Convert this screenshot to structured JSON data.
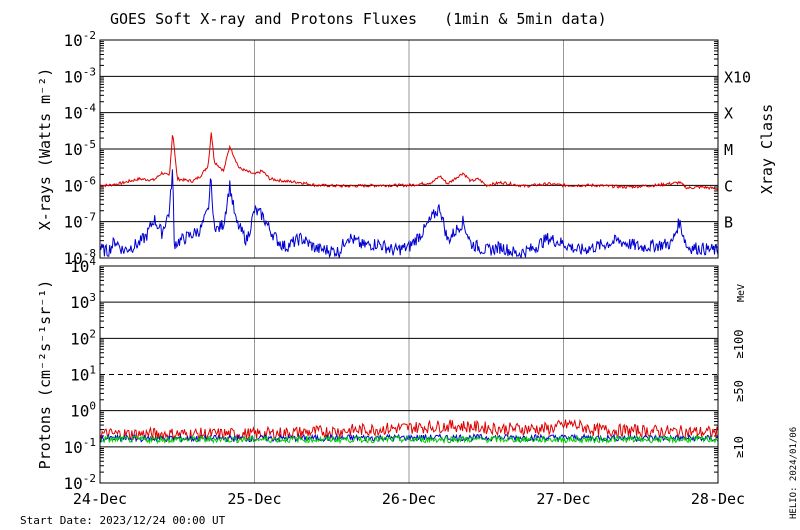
{
  "chart_data": {
    "title": "GOES Soft X-ray and Protons Fluxes   (1min & 5min data)",
    "start_date": "Start Date: 2023/12/24 00:00 UT",
    "credit": "HELIO: 2024/01/06",
    "x_ticks": [
      "24-Dec",
      "25-Dec",
      "26-Dec",
      "27-Dec",
      "28-Dec"
    ],
    "colors": {
      "xray_long": "#e00000",
      "xray_short": "#0000d0",
      "p10": "#e00000",
      "p50": "#0000d0",
      "p100": "#00d000",
      "axis": "#000000",
      "grid": "#999999"
    },
    "panels": [
      {
        "name": "xray",
        "type": "line",
        "ylabel": "X-rays (Watts m⁻²)",
        "y_scale": "log",
        "ylim": [
          1e-08,
          0.01
        ],
        "y_ticks": [
          {
            "base": "10",
            "exp": "-8"
          },
          {
            "base": "10",
            "exp": "-7"
          },
          {
            "base": "10",
            "exp": "-6"
          },
          {
            "base": "10",
            "exp": "-5"
          },
          {
            "base": "10",
            "exp": "-4"
          },
          {
            "base": "10",
            "exp": "-3"
          },
          {
            "base": "10",
            "exp": "-2"
          }
        ],
        "right_label": "Xray Class",
        "class_labels": [
          {
            "label": "B",
            "value": 1e-07
          },
          {
            "label": "C",
            "value": 1e-06
          },
          {
            "label": "M",
            "value": 1e-05
          },
          {
            "label": "X",
            "value": 0.0001
          },
          {
            "label": "X10",
            "value": 0.001
          }
        ],
        "series": [
          {
            "color": "#e00000",
            "points": [
              [
                0.0,
                1e-06
              ],
              [
                0.05,
                1e-06
              ],
              [
                0.12,
                1.1e-06
              ],
              [
                0.25,
                1.5e-06
              ],
              [
                0.35,
                1.4e-06
              ],
              [
                0.4,
                2.2e-06
              ],
              [
                0.45,
                1.8e-06
              ],
              [
                0.47,
                3e-05
              ],
              [
                0.48,
                1.2e-05
              ],
              [
                0.5,
                1.5e-06
              ],
              [
                0.6,
                1.3e-06
              ],
              [
                0.65,
                1.8e-06
              ],
              [
                0.7,
                3.5e-06
              ],
              [
                0.72,
                3e-05
              ],
              [
                0.74,
                4.5e-06
              ],
              [
                0.8,
                2.5e-06
              ],
              [
                0.84,
                1.2e-05
              ],
              [
                0.9,
                3e-06
              ],
              [
                1.0,
                2e-06
              ],
              [
                1.05,
                2.5e-06
              ],
              [
                1.1,
                1.5e-06
              ],
              [
                1.2,
                1.3e-06
              ],
              [
                1.3,
                1.2e-06
              ],
              [
                1.4,
                1e-06
              ],
              [
                1.6,
                9.5e-07
              ],
              [
                1.8,
                1e-06
              ],
              [
                2.0,
                1e-06
              ],
              [
                2.15,
                1.2e-06
              ],
              [
                2.2,
                1.8e-06
              ],
              [
                2.25,
                1.1e-06
              ],
              [
                2.35,
                2.2e-06
              ],
              [
                2.4,
                1.3e-06
              ],
              [
                2.45,
                1.5e-06
              ],
              [
                2.5,
                1e-06
              ],
              [
                2.6,
                1.2e-06
              ],
              [
                2.75,
                9.5e-07
              ],
              [
                2.9,
                1.1e-06
              ],
              [
                3.0,
                1e-06
              ],
              [
                3.2,
                1e-06
              ],
              [
                3.4,
                9e-07
              ],
              [
                3.6,
                1e-06
              ],
              [
                3.75,
                1.2e-06
              ],
              [
                3.8,
                8.5e-07
              ],
              [
                3.9,
                9e-07
              ],
              [
                4.0,
                8e-07
              ]
            ]
          },
          {
            "color": "#0000d0",
            "points": [
              [
                0.0,
                1.8e-08
              ],
              [
                0.05,
                1.5e-08
              ],
              [
                0.1,
                3e-08
              ],
              [
                0.15,
                1.6e-08
              ],
              [
                0.25,
                2.5e-08
              ],
              [
                0.3,
                4e-08
              ],
              [
                0.35,
                1.2e-07
              ],
              [
                0.4,
                5e-08
              ],
              [
                0.45,
                2e-07
              ],
              [
                0.47,
                3e-06
              ],
              [
                0.48,
                2.5e-08
              ],
              [
                0.55,
                3.5e-08
              ],
              [
                0.65,
                6e-08
              ],
              [
                0.7,
                2e-07
              ],
              [
                0.72,
                2e-06
              ],
              [
                0.73,
                1.2e-07
              ],
              [
                0.76,
                6e-08
              ],
              [
                0.8,
                9e-08
              ],
              [
                0.84,
                1e-06
              ],
              [
                0.88,
                1e-07
              ],
              [
                0.95,
                3e-08
              ],
              [
                1.0,
                2e-07
              ],
              [
                1.05,
                1.5e-07
              ],
              [
                1.1,
                6e-08
              ],
              [
                1.15,
                3e-08
              ],
              [
                1.2,
                2e-08
              ],
              [
                1.3,
                3.5e-08
              ],
              [
                1.4,
                1.8e-08
              ],
              [
                1.55,
                1.5e-08
              ],
              [
                1.6,
                4e-08
              ],
              [
                1.7,
                2.2e-08
              ],
              [
                1.8,
                2.5e-08
              ],
              [
                1.9,
                1.6e-08
              ],
              [
                2.0,
                2e-08
              ],
              [
                2.1,
                6e-08
              ],
              [
                2.15,
                1.3e-07
              ],
              [
                2.2,
                2.5e-07
              ],
              [
                2.25,
                3e-08
              ],
              [
                2.35,
                1e-07
              ],
              [
                2.4,
                2.5e-08
              ],
              [
                2.5,
                1.6e-08
              ],
              [
                2.6,
                2e-08
              ],
              [
                2.7,
                1.3e-08
              ],
              [
                2.8,
                1.8e-08
              ],
              [
                2.9,
                3.5e-08
              ],
              [
                3.0,
                2.5e-08
              ],
              [
                3.1,
                1.6e-08
              ],
              [
                3.2,
                2e-08
              ],
              [
                3.35,
                3e-08
              ],
              [
                3.5,
                2e-08
              ],
              [
                3.7,
                2.5e-08
              ],
              [
                3.75,
                1e-07
              ],
              [
                3.8,
                2e-08
              ],
              [
                3.9,
                1.8e-08
              ],
              [
                4.0,
                1.6e-08
              ]
            ]
          }
        ]
      },
      {
        "name": "protons",
        "type": "line",
        "ylabel": "Protons (cm⁻²s⁻¹sr⁻¹)",
        "y_scale": "log",
        "ylim": [
          0.01,
          10000.0
        ],
        "y_ticks": [
          {
            "base": "10",
            "exp": "-2"
          },
          {
            "base": "10",
            "exp": "-1"
          },
          {
            "base": "10",
            "exp": "0"
          },
          {
            "base": "10",
            "exp": "1"
          },
          {
            "base": "10",
            "exp": "2"
          },
          {
            "base": "10",
            "exp": "3"
          },
          {
            "base": "10",
            "exp": "4"
          }
        ],
        "dashed_level": 10,
        "energy_unit": "MeV",
        "legend": [
          {
            "label": "≥10",
            "color": "#e00000"
          },
          {
            "label": "≥50",
            "color": "#0000d0"
          },
          {
            "label": "≥100",
            "color": "#00d000"
          }
        ],
        "series": [
          {
            "color": "#e00000",
            "points": [
              [
                0.0,
                0.2
              ],
              [
                0.5,
                0.2
              ],
              [
                1.0,
                0.2
              ],
              [
                1.5,
                0.24
              ],
              [
                2.0,
                0.3
              ],
              [
                2.3,
                0.34
              ],
              [
                2.6,
                0.28
              ],
              [
                2.9,
                0.28
              ],
              [
                3.05,
                0.38
              ],
              [
                3.2,
                0.26
              ],
              [
                3.6,
                0.24
              ],
              [
                4.0,
                0.22
              ]
            ]
          },
          {
            "color": "#0000d0",
            "points": [
              [
                0.0,
                0.17
              ],
              [
                1.0,
                0.17
              ],
              [
                2.0,
                0.18
              ],
              [
                3.0,
                0.18
              ],
              [
                4.0,
                0.17
              ]
            ]
          },
          {
            "color": "#00d000",
            "points": [
              [
                0.0,
                0.16
              ],
              [
                1.0,
                0.16
              ],
              [
                2.0,
                0.16
              ],
              [
                3.0,
                0.16
              ],
              [
                4.0,
                0.16
              ]
            ]
          }
        ]
      }
    ]
  }
}
